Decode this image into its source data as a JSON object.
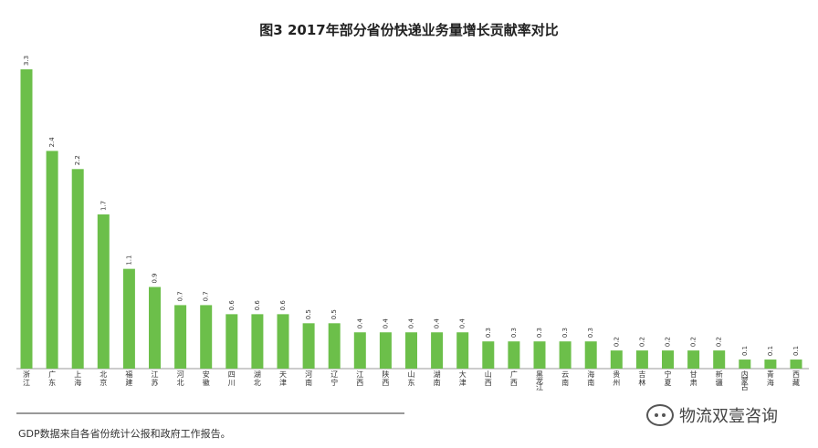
{
  "chart_data": {
    "type": "bar",
    "title": "图3  2017年部分省份快递业务量增长贡献率对比",
    "xlabel": "",
    "ylabel": "",
    "ylim": [
      0,
      3.4
    ],
    "grid": false,
    "bar_color": "#6cbf4a",
    "categories": [
      "浙江",
      "广东",
      "上海",
      "北京",
      "福建",
      "江苏",
      "河北",
      "安徽",
      "四川",
      "湖北",
      "天津",
      "河南",
      "辽宁",
      "江西",
      "陕西",
      "山东",
      "湖南",
      "大津",
      "山西",
      "广西",
      "黑龙江",
      "云南",
      "海南",
      "贵州",
      "吉林",
      "宁夏",
      "甘肃",
      "新疆",
      "内蒙古",
      "青海",
      "西藏"
    ],
    "values": [
      3.3,
      2.4,
      2.2,
      1.7,
      1.1,
      0.9,
      0.7,
      0.7,
      0.6,
      0.6,
      0.6,
      0.5,
      0.5,
      0.4,
      0.4,
      0.4,
      0.4,
      0.4,
      0.3,
      0.3,
      0.3,
      0.3,
      0.3,
      0.2,
      0.2,
      0.2,
      0.2,
      0.2,
      0.1,
      0.1,
      0.1
    ],
    "value_labels": [
      "3.3",
      "2.4",
      "2.2",
      "1.7",
      "1.1",
      "0.9",
      "0.7",
      "0.7",
      "0.6",
      "0.6",
      "0.6",
      "0.5",
      "0.5",
      "0.4",
      "0.4",
      "0.4",
      "0.4",
      "0.4",
      "0.3",
      "0.3",
      "0.3",
      "0.3",
      "0.3",
      "0.2",
      "0.2",
      "0.2",
      "0.2",
      "0.2",
      "0.1",
      "0.1",
      "0.1"
    ]
  },
  "source_note": "GDP数据来自各省份统计公报和政府工作报告。",
  "watermark": "物流双壹咨询"
}
